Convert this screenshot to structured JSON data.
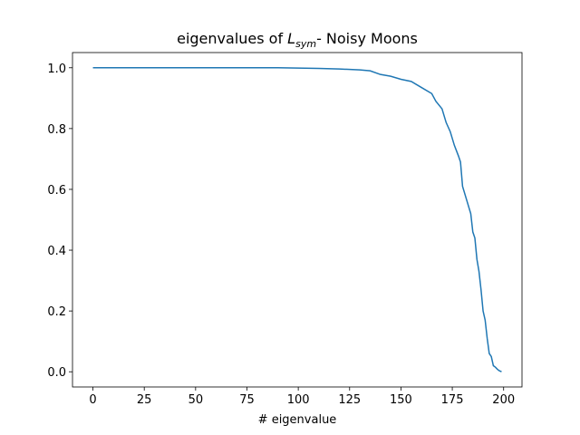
{
  "chart_data": {
    "type": "line",
    "title": [
      "eigenvalues of ",
      "L",
      "sym",
      "- Noisy Moons"
    ],
    "xlabel": "# eigenvalue",
    "x": [
      0,
      25,
      50,
      75,
      90,
      100,
      110,
      120,
      130,
      135,
      140,
      145,
      150,
      155,
      160,
      165,
      167,
      170,
      172,
      174,
      176,
      178,
      179,
      180,
      182,
      184,
      185,
      186,
      187,
      188,
      189,
      190,
      191,
      192,
      193,
      194,
      195,
      196,
      197,
      198,
      199
    ],
    "series": [
      {
        "color": "#1f77b4",
        "values": [
          1.0,
          1.0,
          1.0,
          1.0,
          1.0,
          0.999,
          0.998,
          0.996,
          0.993,
          0.99,
          0.978,
          0.972,
          0.962,
          0.955,
          0.935,
          0.915,
          0.89,
          0.865,
          0.82,
          0.79,
          0.745,
          0.71,
          0.69,
          0.61,
          0.565,
          0.52,
          0.46,
          0.44,
          0.37,
          0.33,
          0.27,
          0.2,
          0.17,
          0.11,
          0.06,
          0.05,
          0.02,
          0.015,
          0.008,
          0.003,
          0.0
        ]
      }
    ],
    "xlim": [
      -9.95,
      208.95
    ],
    "ylim": [
      -0.05,
      1.05
    ],
    "xticks": [
      0,
      25,
      50,
      75,
      100,
      125,
      150,
      175,
      200
    ],
    "yticks": [
      {
        "value": 0,
        "label": "0.0"
      },
      {
        "value": 0.2,
        "label": "0.2"
      },
      {
        "value": 0.4,
        "label": "0.4"
      },
      {
        "value": 0.6,
        "label": "0.6"
      },
      {
        "value": 0.8,
        "label": "0.8"
      },
      {
        "value": 1,
        "label": "1.0"
      }
    ]
  }
}
